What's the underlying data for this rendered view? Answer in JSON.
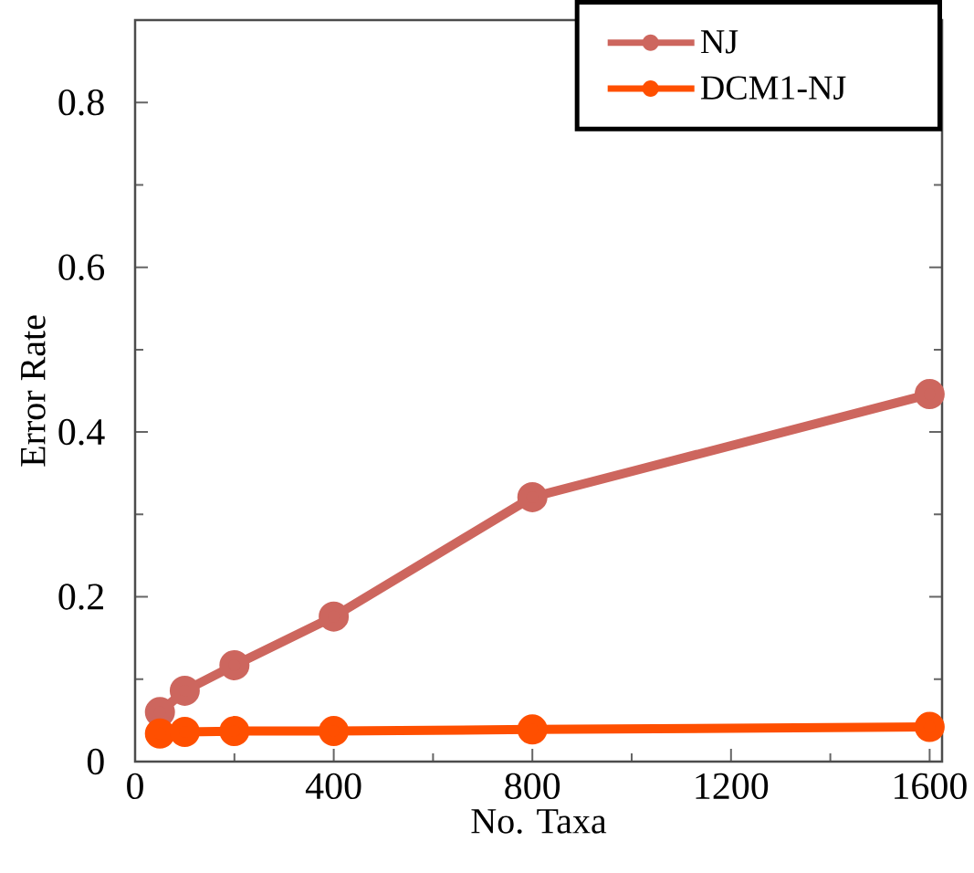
{
  "chart_data": {
    "type": "line",
    "xlabel": "No. Taxa",
    "ylabel": "Error Rate",
    "x": [
      50,
      100,
      200,
      400,
      800,
      1600
    ],
    "series": [
      {
        "name": "NJ",
        "color": "#cd665e",
        "values": [
          0.06,
          0.086,
          0.117,
          0.176,
          0.321,
          0.446
        ]
      },
      {
        "name": "DCM1-NJ",
        "color": "#ff4f00",
        "values": [
          0.034,
          0.036,
          0.037,
          0.037,
          0.039,
          0.042
        ]
      }
    ],
    "xlim": [
      0,
      1625
    ],
    "ylim": [
      0,
      0.9
    ],
    "xticks": [
      0,
      400,
      800,
      1200,
      1600
    ],
    "yticks": [
      0,
      0.2,
      0.4,
      0.6,
      0.8
    ],
    "grid": false,
    "legend": "top right",
    "marker": "circle",
    "line_style": "solid"
  }
}
